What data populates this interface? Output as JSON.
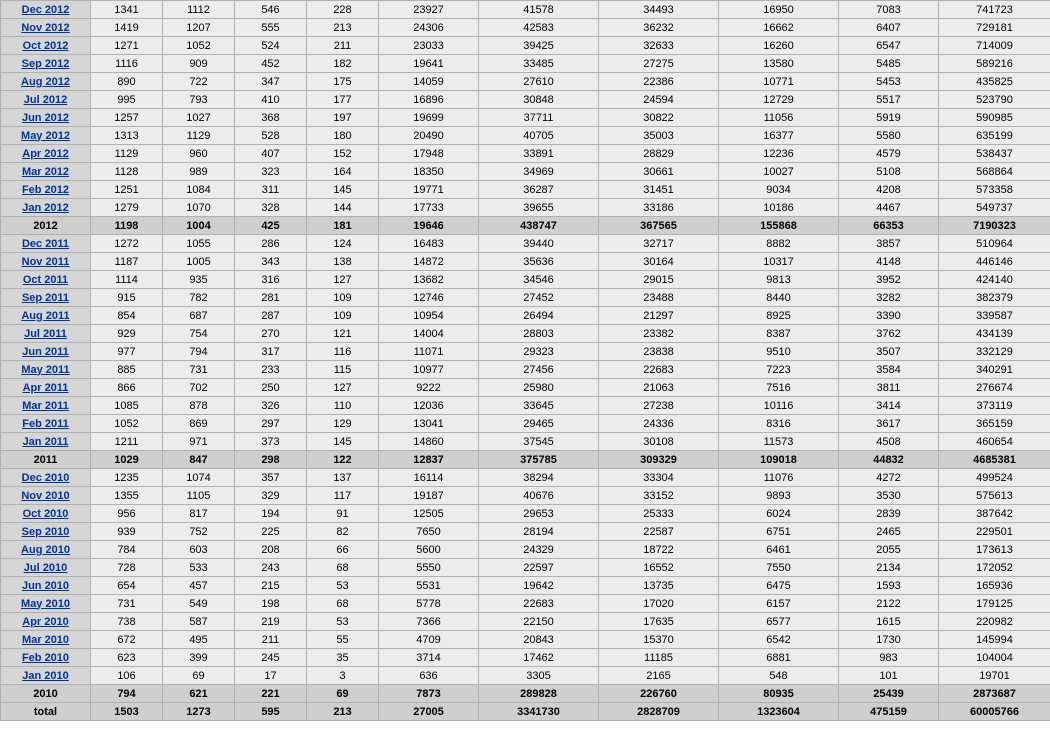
{
  "colors": {
    "row_bg": "#ececec",
    "label_bg": "#d6d6d6",
    "summary_bg": "#cfcfcf",
    "border": "#b0b0b0",
    "link": "#003399"
  },
  "rows": [
    {
      "type": "data",
      "label": "Dec 2012",
      "cells": [
        "1341",
        "1112",
        "546",
        "228",
        "23927",
        "41578",
        "34493",
        "16950",
        "7083",
        "741723"
      ]
    },
    {
      "type": "data",
      "label": "Nov 2012",
      "cells": [
        "1419",
        "1207",
        "555",
        "213",
        "24306",
        "42583",
        "36232",
        "16662",
        "6407",
        "729181"
      ]
    },
    {
      "type": "data",
      "label": "Oct 2012",
      "cells": [
        "1271",
        "1052",
        "524",
        "211",
        "23033",
        "39425",
        "32633",
        "16260",
        "6547",
        "714009"
      ]
    },
    {
      "type": "data",
      "label": "Sep 2012",
      "cells": [
        "1116",
        "909",
        "452",
        "182",
        "19641",
        "33485",
        "27275",
        "13580",
        "5485",
        "589216"
      ]
    },
    {
      "type": "data",
      "label": "Aug 2012",
      "cells": [
        "890",
        "722",
        "347",
        "175",
        "14059",
        "27610",
        "22386",
        "10771",
        "5453",
        "435825"
      ]
    },
    {
      "type": "data",
      "label": "Jul 2012",
      "cells": [
        "995",
        "793",
        "410",
        "177",
        "16896",
        "30848",
        "24594",
        "12729",
        "5517",
        "523790"
      ]
    },
    {
      "type": "data",
      "label": "Jun 2012",
      "cells": [
        "1257",
        "1027",
        "368",
        "197",
        "19699",
        "37711",
        "30822",
        "11056",
        "5919",
        "590985"
      ]
    },
    {
      "type": "data",
      "label": "May 2012",
      "cells": [
        "1313",
        "1129",
        "528",
        "180",
        "20490",
        "40705",
        "35003",
        "16377",
        "5580",
        "635199"
      ]
    },
    {
      "type": "data",
      "label": "Apr 2012",
      "cells": [
        "1129",
        "960",
        "407",
        "152",
        "17948",
        "33891",
        "28829",
        "12236",
        "4579",
        "538437"
      ]
    },
    {
      "type": "data",
      "label": "Mar 2012",
      "cells": [
        "1128",
        "989",
        "323",
        "164",
        "18350",
        "34969",
        "30661",
        "10027",
        "5108",
        "568864"
      ]
    },
    {
      "type": "data",
      "label": "Feb 2012",
      "cells": [
        "1251",
        "1084",
        "311",
        "145",
        "19771",
        "36287",
        "31451",
        "9034",
        "4208",
        "573358"
      ]
    },
    {
      "type": "data",
      "label": "Jan 2012",
      "cells": [
        "1279",
        "1070",
        "328",
        "144",
        "17733",
        "39655",
        "33186",
        "10186",
        "4467",
        "549737"
      ]
    },
    {
      "type": "summary",
      "label": "2012",
      "cells": [
        "1198",
        "1004",
        "425",
        "181",
        "19646",
        "438747",
        "367565",
        "155868",
        "66353",
        "7190323"
      ]
    },
    {
      "type": "data",
      "label": "Dec 2011",
      "cells": [
        "1272",
        "1055",
        "286",
        "124",
        "16483",
        "39440",
        "32717",
        "8882",
        "3857",
        "510964"
      ]
    },
    {
      "type": "data",
      "label": "Nov 2011",
      "cells": [
        "1187",
        "1005",
        "343",
        "138",
        "14872",
        "35636",
        "30164",
        "10317",
        "4148",
        "446146"
      ]
    },
    {
      "type": "data",
      "label": "Oct 2011",
      "cells": [
        "1114",
        "935",
        "316",
        "127",
        "13682",
        "34546",
        "29015",
        "9813",
        "3952",
        "424140"
      ]
    },
    {
      "type": "data",
      "label": "Sep 2011",
      "cells": [
        "915",
        "782",
        "281",
        "109",
        "12746",
        "27452",
        "23488",
        "8440",
        "3282",
        "382379"
      ]
    },
    {
      "type": "data",
      "label": "Aug 2011",
      "cells": [
        "854",
        "687",
        "287",
        "109",
        "10954",
        "26494",
        "21297",
        "8925",
        "3390",
        "339587"
      ]
    },
    {
      "type": "data",
      "label": "Jul 2011",
      "cells": [
        "929",
        "754",
        "270",
        "121",
        "14004",
        "28803",
        "23382",
        "8387",
        "3762",
        "434139"
      ]
    },
    {
      "type": "data",
      "label": "Jun 2011",
      "cells": [
        "977",
        "794",
        "317",
        "116",
        "11071",
        "29323",
        "23838",
        "9510",
        "3507",
        "332129"
      ]
    },
    {
      "type": "data",
      "label": "May 2011",
      "cells": [
        "885",
        "731",
        "233",
        "115",
        "10977",
        "27456",
        "22683",
        "7223",
        "3584",
        "340291"
      ]
    },
    {
      "type": "data",
      "label": "Apr 2011",
      "cells": [
        "866",
        "702",
        "250",
        "127",
        "9222",
        "25980",
        "21063",
        "7516",
        "3811",
        "276674"
      ]
    },
    {
      "type": "data",
      "label": "Mar 2011",
      "cells": [
        "1085",
        "878",
        "326",
        "110",
        "12036",
        "33645",
        "27238",
        "10116",
        "3414",
        "373119"
      ]
    },
    {
      "type": "data",
      "label": "Feb 2011",
      "cells": [
        "1052",
        "869",
        "297",
        "129",
        "13041",
        "29465",
        "24336",
        "8316",
        "3617",
        "365159"
      ]
    },
    {
      "type": "data",
      "label": "Jan 2011",
      "cells": [
        "1211",
        "971",
        "373",
        "145",
        "14860",
        "37545",
        "30108",
        "11573",
        "4508",
        "460654"
      ]
    },
    {
      "type": "summary",
      "label": "2011",
      "cells": [
        "1029",
        "847",
        "298",
        "122",
        "12837",
        "375785",
        "309329",
        "109018",
        "44832",
        "4685381"
      ]
    },
    {
      "type": "data",
      "label": "Dec 2010",
      "cells": [
        "1235",
        "1074",
        "357",
        "137",
        "16114",
        "38294",
        "33304",
        "11076",
        "4272",
        "499524"
      ]
    },
    {
      "type": "data",
      "label": "Nov 2010",
      "cells": [
        "1355",
        "1105",
        "329",
        "117",
        "19187",
        "40676",
        "33152",
        "9893",
        "3530",
        "575613"
      ]
    },
    {
      "type": "data",
      "label": "Oct 2010",
      "cells": [
        "956",
        "817",
        "194",
        "91",
        "12505",
        "29653",
        "25333",
        "6024",
        "2839",
        "387642"
      ]
    },
    {
      "type": "data",
      "label": "Sep 2010",
      "cells": [
        "939",
        "752",
        "225",
        "82",
        "7650",
        "28194",
        "22587",
        "6751",
        "2465",
        "229501"
      ]
    },
    {
      "type": "data",
      "label": "Aug 2010",
      "cells": [
        "784",
        "603",
        "208",
        "66",
        "5600",
        "24329",
        "18722",
        "6461",
        "2055",
        "173613"
      ]
    },
    {
      "type": "data",
      "label": "Jul 2010",
      "cells": [
        "728",
        "533",
        "243",
        "68",
        "5550",
        "22597",
        "16552",
        "7550",
        "2134",
        "172052"
      ]
    },
    {
      "type": "data",
      "label": "Jun 2010",
      "cells": [
        "654",
        "457",
        "215",
        "53",
        "5531",
        "19642",
        "13735",
        "6475",
        "1593",
        "165936"
      ]
    },
    {
      "type": "data",
      "label": "May 2010",
      "cells": [
        "731",
        "549",
        "198",
        "68",
        "5778",
        "22683",
        "17020",
        "6157",
        "2122",
        "179125"
      ]
    },
    {
      "type": "data",
      "label": "Apr 2010",
      "cells": [
        "738",
        "587",
        "219",
        "53",
        "7366",
        "22150",
        "17635",
        "6577",
        "1615",
        "220982"
      ]
    },
    {
      "type": "data",
      "label": "Mar 2010",
      "cells": [
        "672",
        "495",
        "211",
        "55",
        "4709",
        "20843",
        "15370",
        "6542",
        "1730",
        "145994"
      ]
    },
    {
      "type": "data",
      "label": "Feb 2010",
      "cells": [
        "623",
        "399",
        "245",
        "35",
        "3714",
        "17462",
        "11185",
        "6881",
        "983",
        "104004"
      ]
    },
    {
      "type": "data",
      "label": "Jan 2010",
      "cells": [
        "106",
        "69",
        "17",
        "3",
        "636",
        "3305",
        "2165",
        "548",
        "101",
        "19701"
      ]
    },
    {
      "type": "summary",
      "label": "2010",
      "cells": [
        "794",
        "621",
        "221",
        "69",
        "7873",
        "289828",
        "226760",
        "80935",
        "25439",
        "2873687"
      ]
    },
    {
      "type": "total",
      "label": "total",
      "cells": [
        "1503",
        "1273",
        "595",
        "213",
        "27005",
        "3341730",
        "2828709",
        "1323604",
        "475159",
        "60005766"
      ]
    }
  ]
}
